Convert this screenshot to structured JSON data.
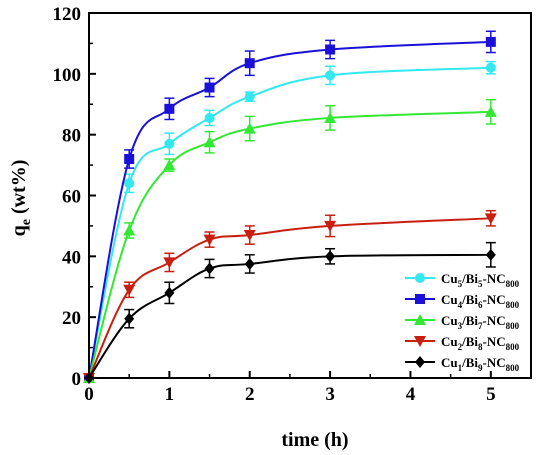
{
  "chart_data": {
    "type": "line",
    "xlabel": "time (h)",
    "ylabel": {
      "main": "q",
      "sub": "e",
      "rest": " (wt%)"
    },
    "xlim": [
      0,
      5.5
    ],
    "ylim": [
      0,
      120
    ],
    "x_ticks": [
      "0",
      "1",
      "2",
      "3",
      "4",
      "5"
    ],
    "y_ticks": [
      "0",
      "20",
      "40",
      "60",
      "80",
      "100",
      "120"
    ],
    "x": [
      0,
      0.5,
      1,
      1.5,
      2,
      3,
      5
    ],
    "legend_position": "bottom-right",
    "grid": false,
    "series": [
      {
        "name": "Cu5/Bi5-NC800",
        "label": {
          "a": "Cu",
          "s1": "5",
          "b": "/Bi",
          "s2": "5",
          "c": "-NC",
          "s3": "800"
        },
        "color": "#33e8ee",
        "marker": "circle",
        "values": [
          0,
          64,
          77,
          85.5,
          92.5,
          99.5,
          102
        ],
        "errors": [
          0,
          3,
          3.5,
          2.5,
          1.5,
          3,
          2
        ]
      },
      {
        "name": "Cu4/Bi6-NC800",
        "label": {
          "a": "Cu",
          "s1": "4",
          "b": "/Bi",
          "s2": "6",
          "c": "-NC",
          "s3": "800"
        },
        "color": "#1a10d8",
        "marker": "square",
        "values": [
          0,
          72,
          88.5,
          95.5,
          103.5,
          108,
          110.5
        ],
        "errors": [
          0,
          3,
          3.5,
          3,
          4,
          3,
          3.5
        ]
      },
      {
        "name": "Cu3/Bi7-NC800",
        "label": {
          "a": "Cu",
          "s1": "3",
          "b": "/Bi",
          "s2": "7",
          "c": "-NC",
          "s3": "800"
        },
        "color": "#33e833",
        "marker": "triangle-up",
        "values": [
          0,
          48.5,
          70,
          77.5,
          82,
          85.5,
          87.5
        ],
        "errors": [
          0,
          2.5,
          2,
          3.5,
          4,
          4,
          4
        ]
      },
      {
        "name": "Cu2/Bi8-NC800",
        "label": {
          "a": "Cu",
          "s1": "2",
          "b": "/Bi",
          "s2": "8",
          "c": "-NC",
          "s3": "800"
        },
        "color": "#c81e0f",
        "marker": "triangle-down",
        "values": [
          0,
          29,
          38,
          45.5,
          47,
          50,
          52.5
        ],
        "errors": [
          0,
          2.5,
          3,
          2.5,
          3,
          3.5,
          2.5
        ]
      },
      {
        "name": "Cu1/Bi9-NC800",
        "label": {
          "a": "Cu",
          "s1": "1",
          "b": "/Bi",
          "s2": "9",
          "c": "-NC",
          "s3": "800"
        },
        "color": "#000000",
        "marker": "diamond",
        "values": [
          0,
          19.5,
          28,
          36,
          37.5,
          40,
          40.5
        ],
        "errors": [
          0,
          3,
          3.5,
          3,
          3,
          2.5,
          4
        ]
      }
    ]
  }
}
